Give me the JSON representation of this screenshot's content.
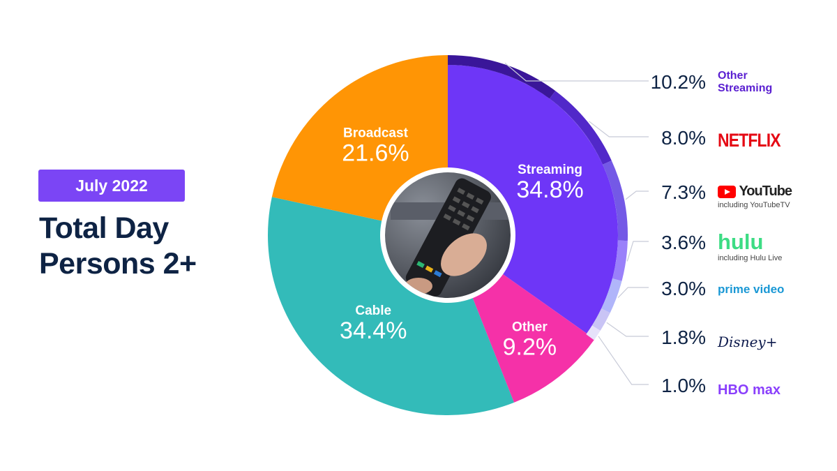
{
  "badge": "July 2022",
  "title_line1": "Total Day",
  "title_line2": "Persons 2+",
  "chart_data": {
    "type": "pie",
    "categories": [
      "Streaming",
      "Other",
      "Cable",
      "Broadcast"
    ],
    "values": [
      34.8,
      9.2,
      34.4,
      21.6
    ],
    "labels": [
      "34.8%",
      "9.2%",
      "34.4%",
      "21.6%"
    ],
    "colors": [
      "#6E36F7",
      "#F531A8",
      "#33BBB9",
      "#FF9505"
    ],
    "streaming_breakdown": {
      "categories": [
        "Other Streaming",
        "NETFLIX",
        "YouTube",
        "hulu",
        "prime video",
        "Disney+",
        "HBO max"
      ],
      "values": [
        10.2,
        8.0,
        7.3,
        3.6,
        3.0,
        1.8,
        1.0
      ],
      "labels": [
        "10.2%",
        "8.0%",
        "7.3%",
        "3.6%",
        "3.0%",
        "1.8%",
        "1.0%"
      ],
      "colors": [
        "#3A1699",
        "#5128C9",
        "#7459E6",
        "#9A80FA",
        "#B0B5FA",
        "#C9C4F5",
        "#E6E1FA"
      ],
      "notes": {
        "YouTube": "including YouTubeTV",
        "hulu": "including Hulu Live"
      }
    }
  }
}
